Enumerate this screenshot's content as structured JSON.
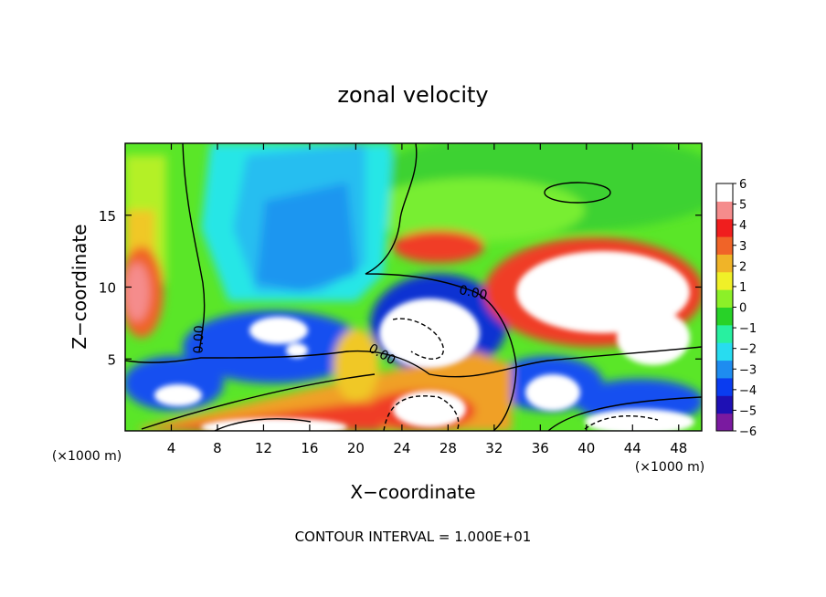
{
  "chart_data": {
    "type": "heatmap",
    "title": "zonal velocity",
    "xlabel": "X−coordinate",
    "ylabel": "Z−coordinate",
    "x_unit_left": "(×1000 m)",
    "x_unit_right": "(×1000 m)",
    "xlim": [
      0,
      50
    ],
    "ylim": [
      0,
      20
    ],
    "xticks": [
      4,
      8,
      12,
      16,
      20,
      24,
      28,
      32,
      36,
      40,
      44,
      48
    ],
    "xtick_labels": [
      "4",
      "8",
      "12",
      "16",
      "20",
      "24",
      "28",
      "32",
      "36",
      "40",
      "44",
      "48"
    ],
    "yticks": [
      5,
      10,
      15
    ],
    "ytick_labels": [
      "5",
      "10",
      "15"
    ],
    "colorbar": {
      "range": [
        -6,
        6
      ],
      "tick_values": [
        6,
        5,
        4,
        3,
        2,
        1,
        0,
        -1,
        -2,
        -3,
        -4,
        -5,
        -6
      ],
      "tick_labels": [
        "6",
        "5",
        "4",
        "3",
        "2",
        "1",
        "0",
        "−1",
        "−2",
        "−3",
        "−4",
        "−5",
        "−6"
      ],
      "colors": [
        "#7a1aa0",
        "#1e10b4",
        "#0a3cf0",
        "#1e8cf0",
        "#28dcf0",
        "#28f0a0",
        "#28d228",
        "#8cf028",
        "#f0f028",
        "#f0b428",
        "#f06428",
        "#f01e1e",
        "#f58c8c",
        "#ffffff"
      ]
    },
    "contour_labels": [
      "0.00",
      "0.00",
      "0.00"
    ],
    "grid": false,
    "footer": "CONTOUR INTERVAL = 1.000E+01"
  }
}
